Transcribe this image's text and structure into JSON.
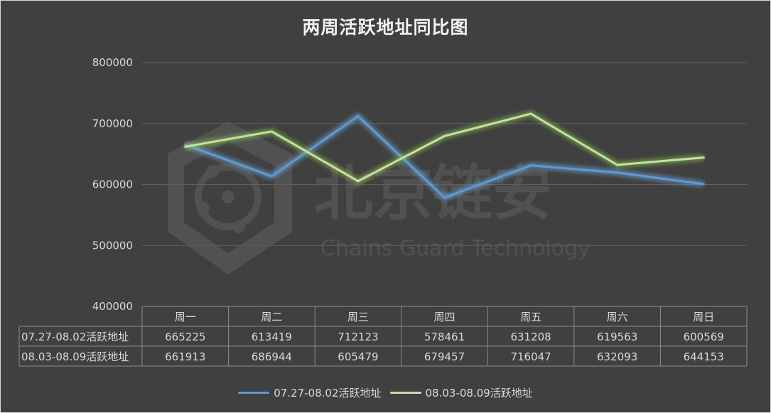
{
  "chart_data": {
    "type": "line",
    "title": "两周活跃地址同比图",
    "categories": [
      "周一",
      "周二",
      "周三",
      "周四",
      "周五",
      "周六",
      "周日"
    ],
    "series": [
      {
        "name": "07.27-08.02活跃地址",
        "values": [
          665225,
          613419,
          712123,
          578461,
          631208,
          619563,
          600569
        ],
        "color": "#5b9bd5"
      },
      {
        "name": "08.03-08.09活跃地址",
        "values": [
          661913,
          686944,
          605479,
          679457,
          716047,
          632093,
          644153
        ],
        "color": "#c5e0a5"
      }
    ],
    "ylim": [
      400000,
      800000
    ],
    "yticks": [
      400000,
      500000,
      600000,
      700000,
      800000
    ],
    "grid": true,
    "legend": "bottom",
    "data_table": true
  },
  "watermark": {
    "name": "北京链安",
    "subtitle": "Chains Guard Technology"
  }
}
